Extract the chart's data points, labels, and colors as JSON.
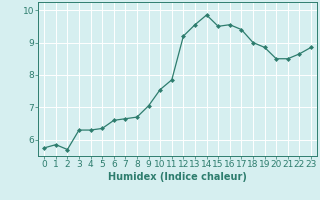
{
  "x": [
    0,
    1,
    2,
    3,
    4,
    5,
    6,
    7,
    8,
    9,
    10,
    11,
    12,
    13,
    14,
    15,
    16,
    17,
    18,
    19,
    20,
    21,
    22,
    23
  ],
  "y": [
    5.75,
    5.85,
    5.7,
    6.3,
    6.3,
    6.35,
    6.6,
    6.65,
    6.7,
    7.05,
    7.55,
    7.85,
    9.2,
    9.55,
    9.85,
    9.5,
    9.55,
    9.4,
    9.0,
    8.85,
    8.5,
    8.5,
    8.65,
    8.85
  ],
  "line_color": "#2e7d6e",
  "marker": "D",
  "marker_size": 2.0,
  "bg_color": "#d6eff0",
  "grid_color": "#ffffff",
  "xlabel": "Humidex (Indice chaleur)",
  "xlim": [
    -0.5,
    23.5
  ],
  "ylim": [
    5.5,
    10.25
  ],
  "yticks": [
    6,
    7,
    8,
    9,
    10
  ],
  "xticks": [
    0,
    1,
    2,
    3,
    4,
    5,
    6,
    7,
    8,
    9,
    10,
    11,
    12,
    13,
    14,
    15,
    16,
    17,
    18,
    19,
    20,
    21,
    22,
    23
  ],
  "label_fontsize": 7,
  "tick_fontsize": 6.5
}
